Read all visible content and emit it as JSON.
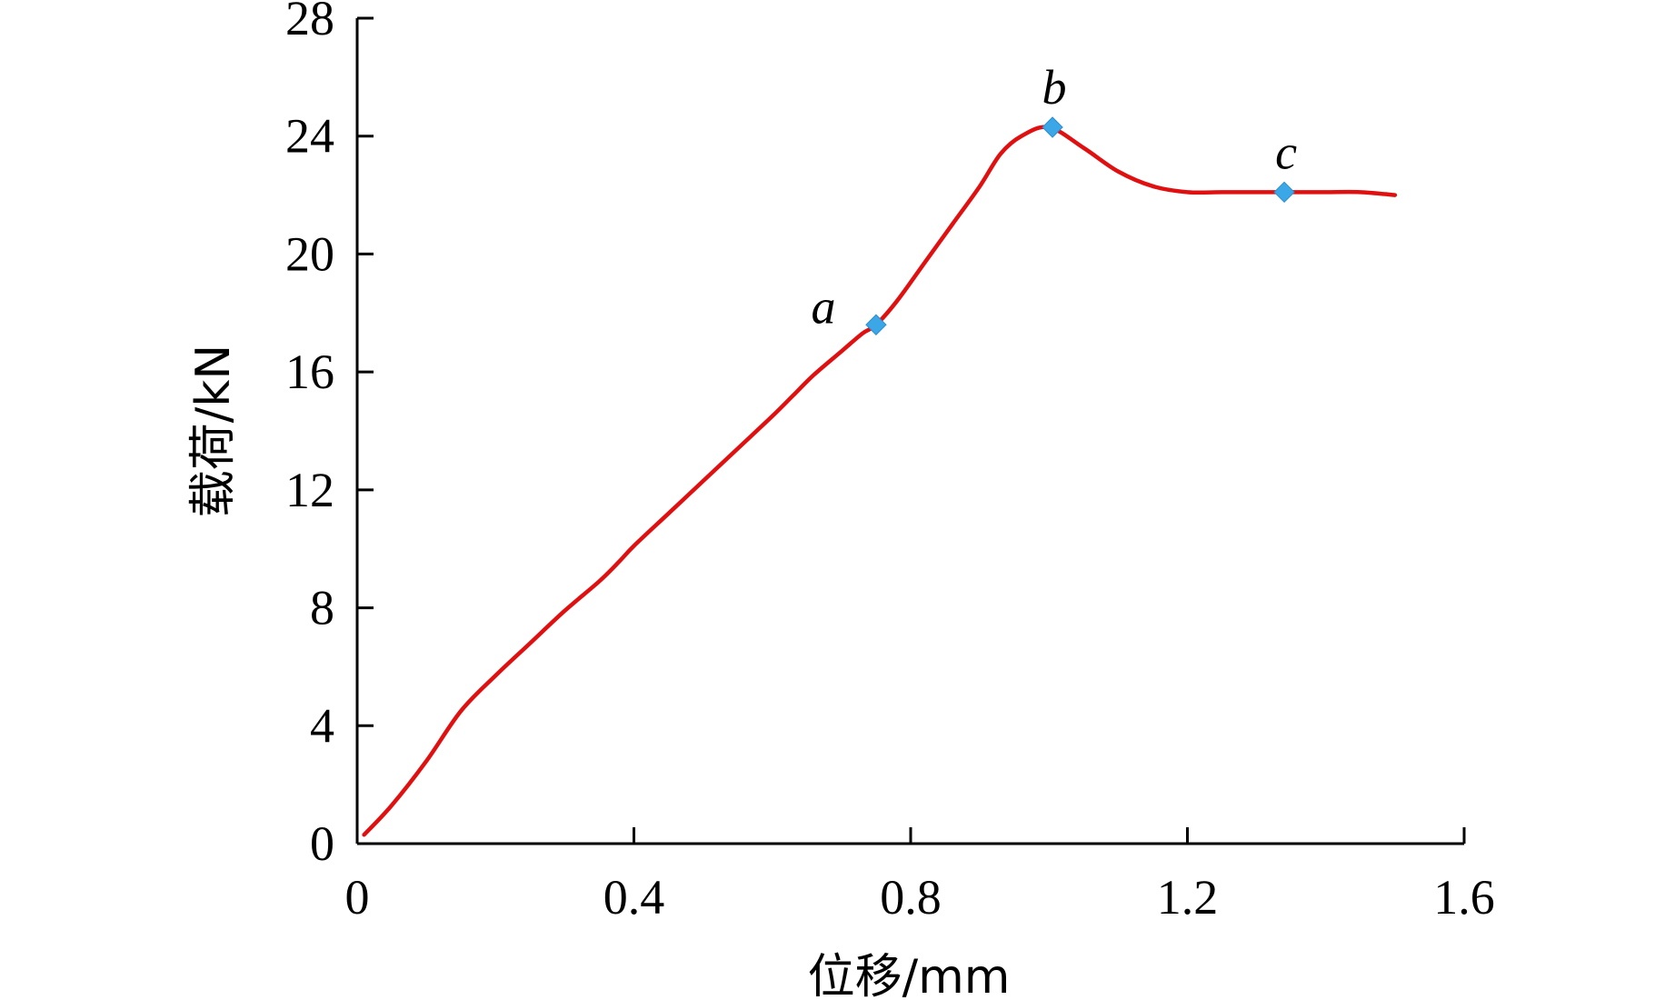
{
  "chart_data": {
    "type": "line",
    "xlabel": "位移/mm",
    "ylabel": "载荷/kN",
    "xlim": [
      0,
      1.6
    ],
    "ylim": [
      0,
      28
    ],
    "x_ticks": [
      "0",
      "0.4",
      "0.8",
      "1.2",
      "1.6"
    ],
    "y_ticks": [
      "0",
      "4",
      "8",
      "12",
      "16",
      "20",
      "24",
      "28"
    ],
    "x_tick_values": [
      0,
      0.4,
      0.8,
      1.2,
      1.6
    ],
    "y_tick_values": [
      0,
      4,
      8,
      12,
      16,
      20,
      24,
      28
    ],
    "grid": false,
    "series": [
      {
        "color": "#e01010",
        "x": [
          0.01,
          0.05,
          0.1,
          0.15,
          0.2,
          0.25,
          0.3,
          0.35,
          0.38,
          0.4,
          0.45,
          0.5,
          0.55,
          0.6,
          0.63,
          0.66,
          0.7,
          0.73,
          0.75,
          0.78,
          0.82,
          0.86,
          0.9,
          0.93,
          0.96,
          1.0,
          1.05,
          1.1,
          1.15,
          1.2,
          1.25,
          1.3,
          1.35,
          1.4,
          1.45,
          1.5
        ],
        "y": [
          0.3,
          1.3,
          2.8,
          4.5,
          5.7,
          6.8,
          7.9,
          8.9,
          9.6,
          10.1,
          11.2,
          12.3,
          13.4,
          14.5,
          15.2,
          15.9,
          16.7,
          17.3,
          17.6,
          18.4,
          19.7,
          21.0,
          22.3,
          23.4,
          24.0,
          24.3,
          23.6,
          22.8,
          22.3,
          22.1,
          22.1,
          22.1,
          22.1,
          22.1,
          22.1,
          22.0
        ]
      }
    ],
    "points": [
      {
        "label": "a",
        "x": 0.75,
        "y": 17.6,
        "label_side": "left"
      },
      {
        "label": "b",
        "x": 1.005,
        "y": 24.3,
        "label_side": "top"
      },
      {
        "label": "c",
        "x": 1.34,
        "y": 22.1,
        "label_side": "top"
      }
    ],
    "marker_color": "#3ba7e6"
  }
}
